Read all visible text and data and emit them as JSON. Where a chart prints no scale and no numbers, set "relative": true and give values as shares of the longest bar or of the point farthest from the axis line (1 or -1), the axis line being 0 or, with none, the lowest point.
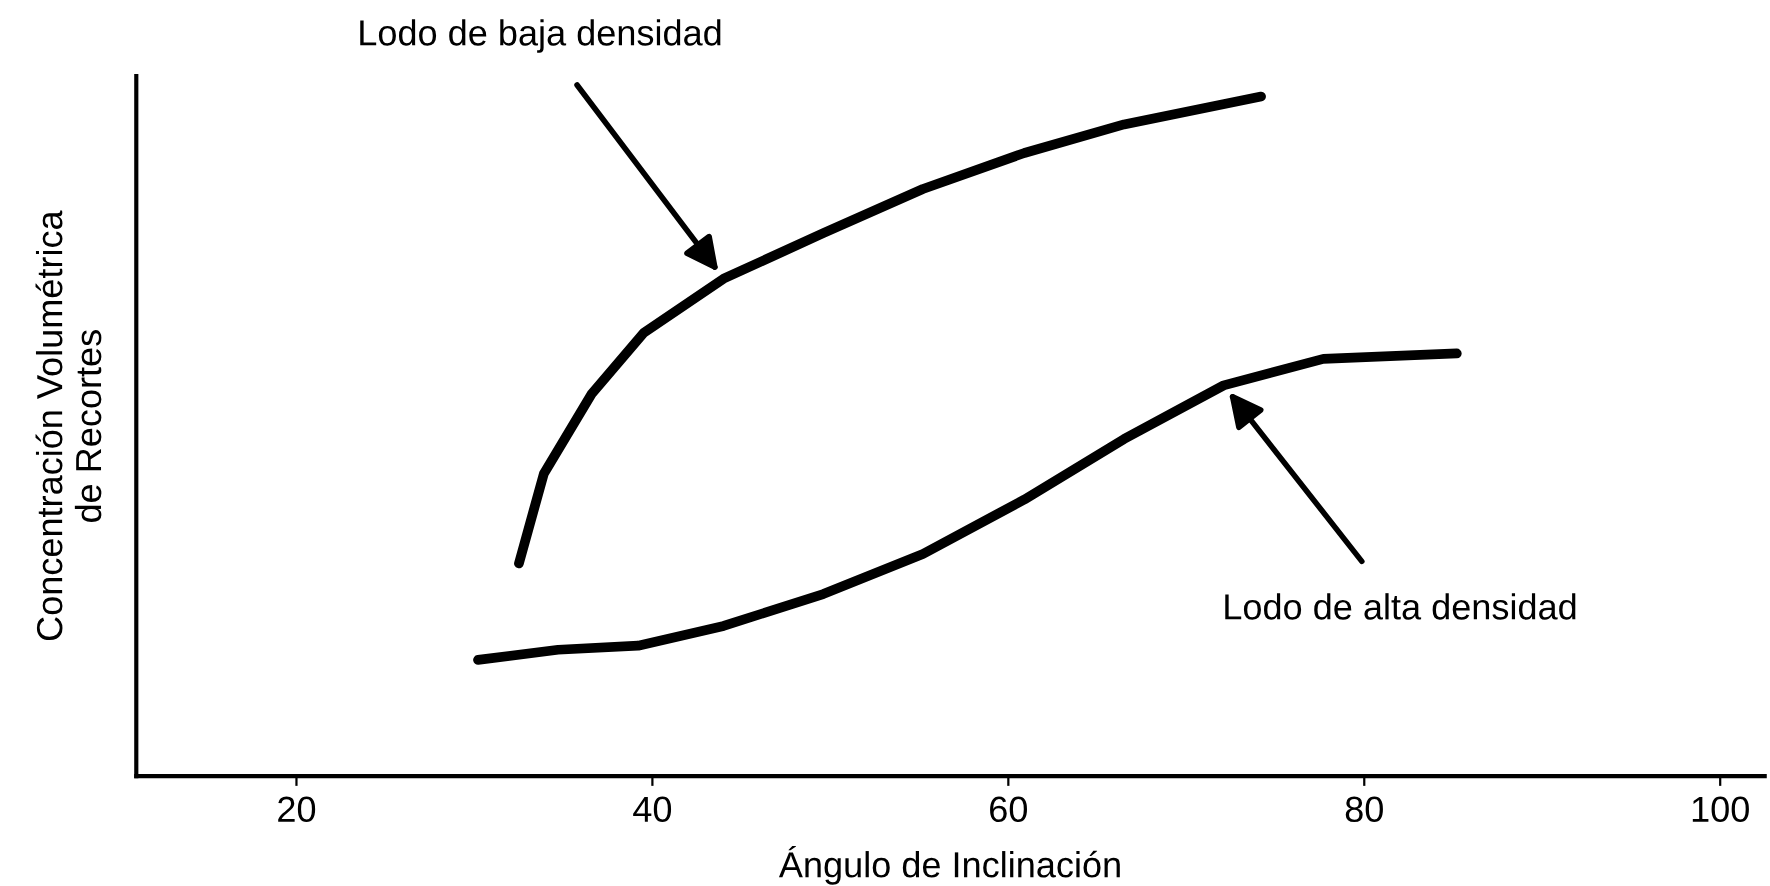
{
  "chart_data": {
    "type": "line",
    "relative": true,
    "xlabel": "Ángulo de Inclinación",
    "ylabel": "Concentración Volumétrica\nde Recortes",
    "xlim": [
      11,
      102.5
    ],
    "xticks": [
      20,
      40,
      60,
      80,
      100
    ],
    "grid": false,
    "legend": false,
    "marker": "none",
    "line_style": "solid",
    "series": [
      {
        "color": "#000000",
        "x": [
          32.5,
          33.9,
          36.6,
          39.5,
          44.0,
          49.6,
          55.2,
          60.9,
          66.5,
          74.2
        ],
        "values": [
          0.313,
          0.445,
          0.563,
          0.652,
          0.732,
          0.799,
          0.864,
          0.917,
          0.959,
          1.0
        ]
      },
      {
        "color": "#000000",
        "x": [
          30.2,
          34.7,
          39.2,
          44.0,
          49.6,
          55.2,
          60.9,
          66.5,
          72.1,
          77.7,
          85.2
        ],
        "values": [
          0.171,
          0.186,
          0.192,
          0.221,
          0.268,
          0.327,
          0.407,
          0.496,
          0.575,
          0.614,
          0.622
        ]
      }
    ],
    "annotations": [
      {
        "text": "Lodo de baja densidad",
        "x": 44.0,
        "y": 0.732
      },
      {
        "text": "Lodo de alta densidad",
        "x": 72.1,
        "y": 0.575
      }
    ]
  }
}
